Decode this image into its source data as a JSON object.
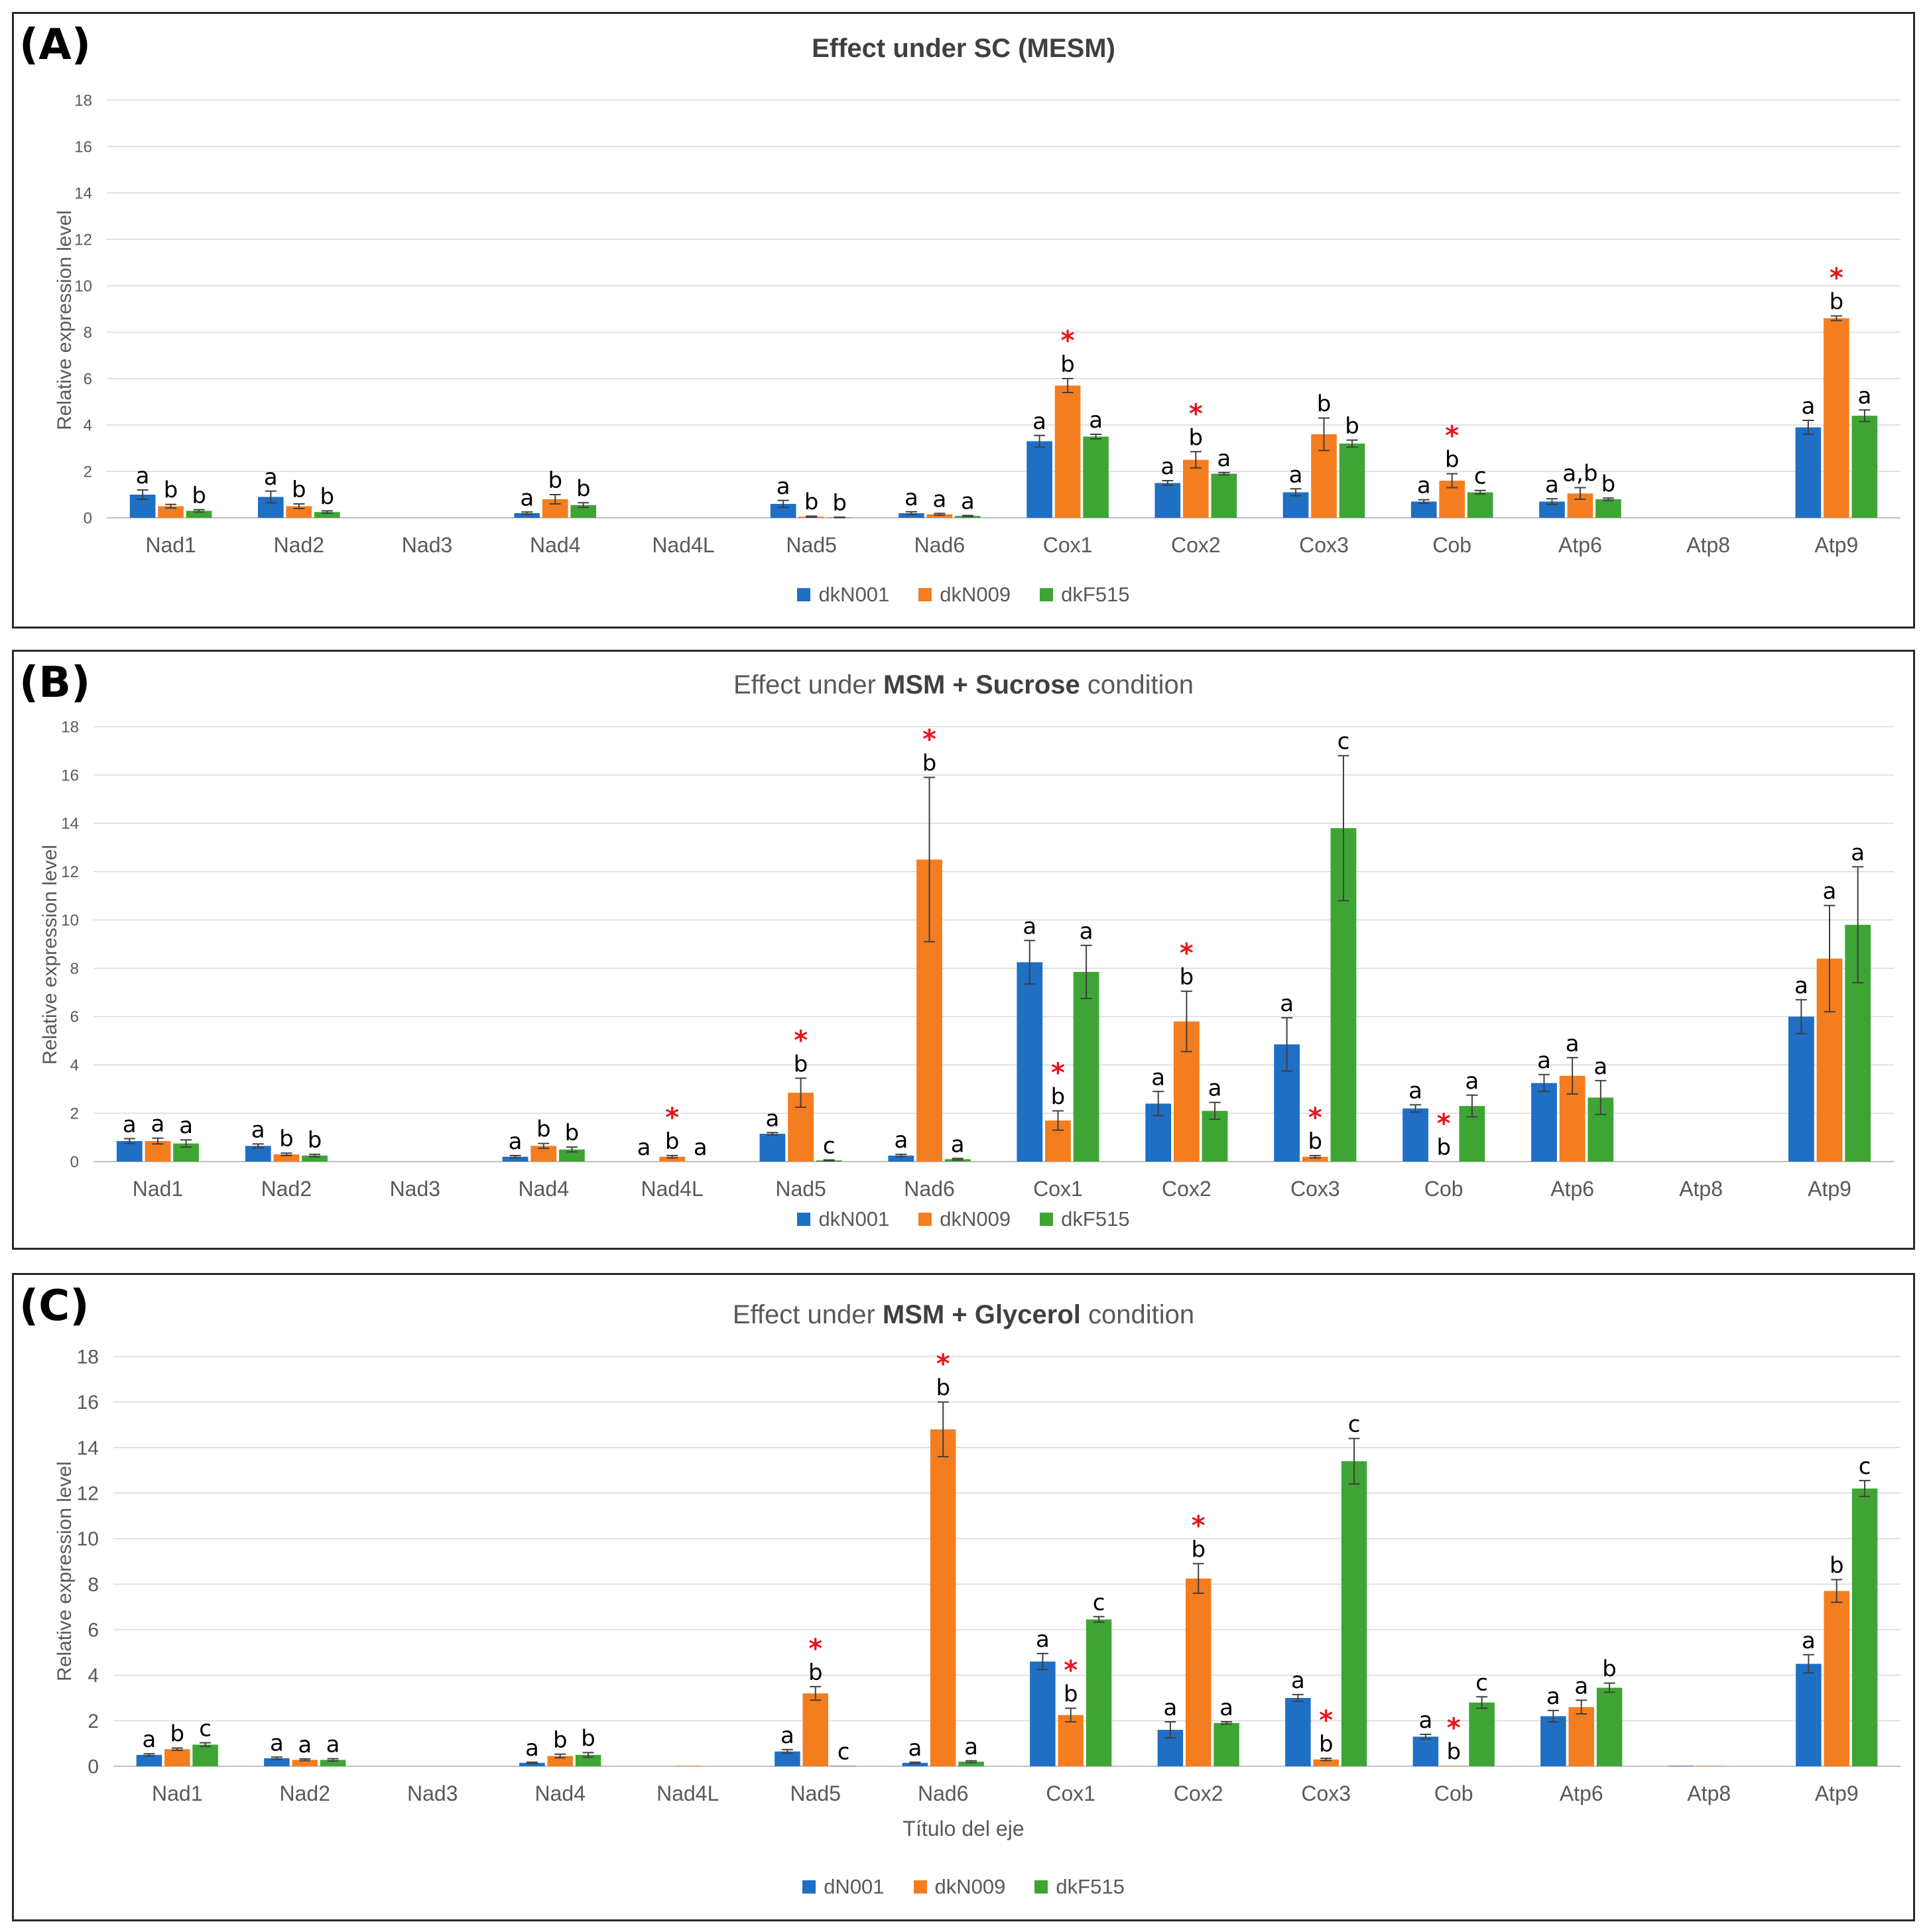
{
  "colors": {
    "series": [
      "#1F6FC5",
      "#F47D20",
      "#3EA535"
    ],
    "grid": "#D9D9D9",
    "axis": "#BFBFBF",
    "star": "#E8141C"
  },
  "chart_data": [
    {
      "panel": "(A)",
      "type": "bar",
      "title": "Effect under SC (MESM)",
      "title_plain": "",
      "title_bold": "Effect under SC (MESM)",
      "title_suffix": "",
      "ylabel": "Relative expression level",
      "xlabel": "",
      "ylim": [
        0,
        18
      ],
      "yticks": [
        0,
        2,
        4,
        6,
        8,
        10,
        12,
        14,
        16,
        18
      ],
      "grid": true,
      "legend": "bottom",
      "categories": [
        "Nad1",
        "Nad2",
        "Nad3",
        "Nad4",
        "Nad4L",
        "Nad5",
        "Nad6",
        "Cox1",
        "Cox2",
        "Cox3",
        "Cob",
        "Atp6",
        "Atp8",
        "Atp9"
      ],
      "series": [
        {
          "name": "dkN001",
          "values": [
            1.0,
            0.9,
            0,
            0.2,
            0,
            0.6,
            0.2,
            3.3,
            1.5,
            1.1,
            0.7,
            0.7,
            0,
            3.9
          ],
          "errors": [
            0.2,
            0.25,
            0,
            0.05,
            0,
            0.15,
            0.06,
            0.25,
            0.1,
            0.15,
            0.08,
            0.12,
            0,
            0.3
          ],
          "letters": [
            "a",
            "a",
            "",
            "a",
            "",
            "a",
            "a",
            "a",
            "a",
            "a",
            "a",
            "a",
            "",
            "a"
          ],
          "stars": [
            false,
            false,
            false,
            false,
            false,
            false,
            false,
            false,
            false,
            false,
            false,
            false,
            false,
            false
          ]
        },
        {
          "name": "dkN009",
          "values": [
            0.5,
            0.5,
            0,
            0.8,
            0,
            0.05,
            0.15,
            5.7,
            2.5,
            3.6,
            1.6,
            1.05,
            0,
            8.6
          ],
          "errors": [
            0.08,
            0.1,
            0,
            0.2,
            0,
            0.02,
            0.04,
            0.3,
            0.35,
            0.7,
            0.3,
            0.25,
            0,
            0.1
          ],
          "letters": [
            "b",
            "b",
            "",
            "b",
            "",
            "b",
            "a",
            "b",
            "b",
            "b",
            "b",
            "a,b",
            "",
            "b"
          ],
          "stars": [
            false,
            false,
            false,
            false,
            false,
            false,
            false,
            true,
            true,
            false,
            true,
            false,
            false,
            true
          ]
        },
        {
          "name": "dkF515",
          "values": [
            0.3,
            0.25,
            0,
            0.55,
            0,
            0.02,
            0.08,
            3.5,
            1.9,
            3.2,
            1.1,
            0.8,
            0,
            4.4
          ],
          "errors": [
            0.05,
            0.05,
            0,
            0.1,
            0,
            0.01,
            0.02,
            0.1,
            0.05,
            0.15,
            0.08,
            0.05,
            0,
            0.25
          ],
          "letters": [
            "b",
            "b",
            "",
            "b",
            "",
            "b",
            "a",
            "a",
            "a",
            "b",
            "c",
            "b",
            "",
            "a"
          ],
          "stars": [
            false,
            false,
            false,
            false,
            false,
            false,
            false,
            false,
            false,
            false,
            false,
            false,
            false,
            false
          ]
        }
      ]
    },
    {
      "panel": "(B)",
      "type": "bar",
      "title": "Effect under MSM + Sucrose condition",
      "title_plain": "Effect under ",
      "title_bold": "MSM + Sucrose",
      "title_suffix": " condition",
      "ylabel": "Relative expression level",
      "xlabel": "",
      "ylim": [
        0,
        18
      ],
      "yticks": [
        0,
        2,
        4,
        6,
        8,
        10,
        12,
        14,
        16,
        18
      ],
      "grid": true,
      "legend": "bottom",
      "categories": [
        "Nad1",
        "Nad2",
        "Nad3",
        "Nad4",
        "Nad4L",
        "Nad5",
        "Nad6",
        "Cox1",
        "Cox2",
        "Cox3",
        "Cob",
        "Atp6",
        "Atp8",
        "Atp9"
      ],
      "series": [
        {
          "name": "dkN001",
          "values": [
            0.85,
            0.65,
            0,
            0.2,
            0,
            1.15,
            0.25,
            8.25,
            2.4,
            4.85,
            2.2,
            3.25,
            0,
            6.0
          ],
          "errors": [
            0.1,
            0.08,
            0,
            0.05,
            0,
            0.05,
            0.05,
            0.9,
            0.5,
            1.1,
            0.15,
            0.35,
            0,
            0.7
          ],
          "letters": [
            "a",
            "a",
            "",
            "a",
            "a",
            "a",
            "a",
            "a",
            "a",
            "a",
            "a",
            "a",
            "",
            "a"
          ],
          "stars": [
            false,
            false,
            false,
            false,
            false,
            false,
            false,
            false,
            false,
            false,
            false,
            false,
            false,
            false
          ]
        },
        {
          "name": "dkN009",
          "values": [
            0.85,
            0.3,
            0,
            0.65,
            0.2,
            2.85,
            12.5,
            1.7,
            5.8,
            0.2,
            0,
            3.55,
            0,
            8.4
          ],
          "errors": [
            0.12,
            0.05,
            0,
            0.1,
            0.05,
            0.6,
            3.4,
            0.4,
            1.25,
            0.05,
            0,
            0.75,
            0,
            2.2
          ],
          "letters": [
            "a",
            "b",
            "",
            "b",
            "b",
            "b",
            "b",
            "b",
            "b",
            "b",
            "b",
            "a",
            "",
            "a"
          ],
          "stars": [
            false,
            false,
            false,
            false,
            true,
            true,
            true,
            true,
            true,
            true,
            true,
            false,
            false,
            false
          ]
        },
        {
          "name": "dkF515",
          "values": [
            0.75,
            0.25,
            0,
            0.5,
            0,
            0.05,
            0.1,
            7.85,
            2.1,
            13.8,
            2.3,
            2.65,
            0,
            9.8
          ],
          "errors": [
            0.15,
            0.05,
            0,
            0.1,
            0,
            0.02,
            0.03,
            1.1,
            0.35,
            3.0,
            0.45,
            0.7,
            0,
            2.4
          ],
          "letters": [
            "a",
            "b",
            "",
            "b",
            "a",
            "c",
            "a",
            "a",
            "a",
            "c",
            "a",
            "a",
            "",
            "a"
          ],
          "stars": [
            false,
            false,
            false,
            false,
            false,
            false,
            false,
            false,
            false,
            false,
            false,
            false,
            false,
            false
          ]
        }
      ]
    },
    {
      "panel": "(C)",
      "type": "bar",
      "title": "Effect under MSM + Glycerol condition",
      "title_plain": "Effect under ",
      "title_bold": "MSM + Glycerol",
      "title_suffix": " condition",
      "ylabel": "Relative expression level",
      "xlabel": "Título del eje",
      "ylim": [
        0,
        18
      ],
      "yticks": [
        0,
        2,
        4,
        6,
        8,
        10,
        12,
        14,
        16,
        18
      ],
      "grid": true,
      "legend": "bottom",
      "categories": [
        "Nad1",
        "Nad2",
        "Nad3",
        "Nad4",
        "Nad4L",
        "Nad5",
        "Nad6",
        "Cox1",
        "Cox2",
        "Cox3",
        "Cob",
        "Atp6",
        "Atp8",
        "Atp9"
      ],
      "series": [
        {
          "name": "dN001",
          "values": [
            0.5,
            0.35,
            0,
            0.15,
            0,
            0.65,
            0.15,
            4.6,
            1.6,
            3.0,
            1.3,
            2.2,
            0.02,
            4.5
          ],
          "errors": [
            0.05,
            0.05,
            0,
            0.03,
            0,
            0.08,
            0.03,
            0.35,
            0.35,
            0.15,
            0.1,
            0.25,
            0,
            0.4
          ],
          "letters": [
            "a",
            "a",
            "",
            "a",
            "",
            "a",
            "a",
            "a",
            "a",
            "a",
            "a",
            "a",
            "",
            "a"
          ],
          "stars": [
            false,
            false,
            false,
            false,
            false,
            false,
            false,
            false,
            false,
            false,
            false,
            false,
            false,
            false
          ]
        },
        {
          "name": "dkN009",
          "values": [
            0.75,
            0.28,
            0,
            0.45,
            0.02,
            3.2,
            14.8,
            2.25,
            8.25,
            0.3,
            0.02,
            2.6,
            0.02,
            7.7
          ],
          "errors": [
            0.05,
            0.04,
            0,
            0.08,
            0,
            0.3,
            1.2,
            0.3,
            0.65,
            0.05,
            0,
            0.3,
            0,
            0.5
          ],
          "letters": [
            "b",
            "a",
            "",
            "b",
            "",
            "b",
            "b",
            "b",
            "b",
            "b",
            "b",
            "a",
            "",
            "b"
          ],
          "stars": [
            false,
            false,
            false,
            false,
            false,
            true,
            true,
            true,
            true,
            true,
            true,
            false,
            false,
            false
          ]
        },
        {
          "name": "dkF515",
          "values": [
            0.95,
            0.28,
            0,
            0.5,
            0,
            0.02,
            0.2,
            6.45,
            1.9,
            13.4,
            2.8,
            3.45,
            0,
            12.2
          ],
          "errors": [
            0.08,
            0.05,
            0,
            0.1,
            0,
            0,
            0.04,
            0.12,
            0.05,
            1.0,
            0.25,
            0.2,
            0,
            0.35
          ],
          "letters": [
            "c",
            "a",
            "",
            "b",
            "",
            "c",
            "a",
            "c",
            "a",
            "c",
            "c",
            "b",
            "",
            "c"
          ],
          "stars": [
            false,
            false,
            false,
            false,
            false,
            false,
            false,
            false,
            false,
            false,
            false,
            false,
            false,
            false
          ]
        }
      ]
    }
  ]
}
